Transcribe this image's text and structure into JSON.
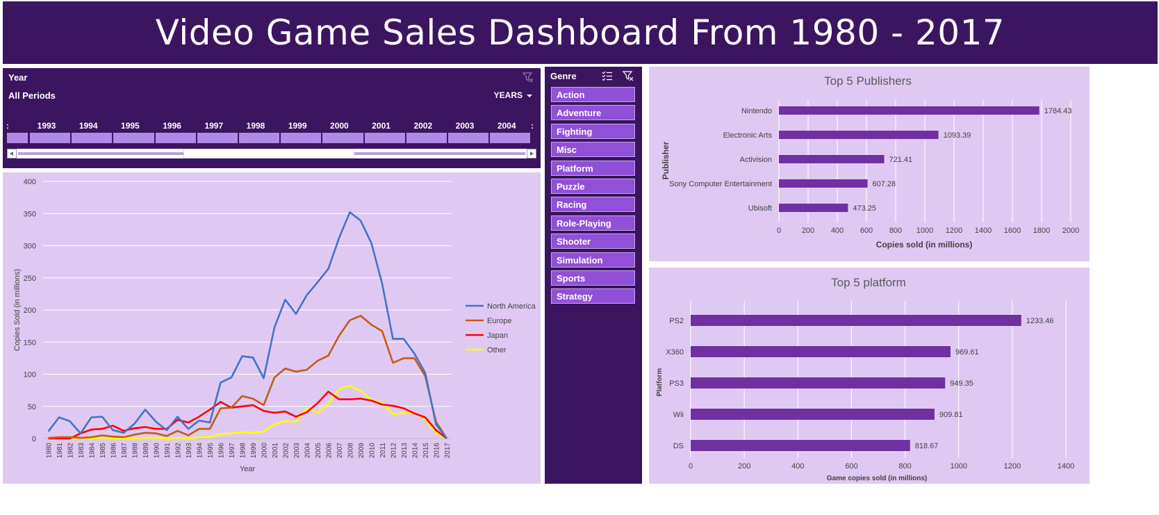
{
  "dashboard": {
    "title": "Video Game Sales Dashboard From 1980 - 2017"
  },
  "timeline": {
    "title": "Year",
    "period_label": "All Periods",
    "level_label": "YEARS",
    "visible_years": [
      "1993",
      "1994",
      "1995",
      "1996",
      "1997",
      "1998",
      "1999",
      "2000",
      "2001",
      "2002",
      "2003",
      "2004"
    ]
  },
  "genre_slicer": {
    "title": "Genre",
    "items": [
      "Action",
      "Adventure",
      "Fighting",
      "Misc",
      "Platform",
      "Puzzle",
      "Racing",
      "Role-Playing",
      "Shooter",
      "Simulation",
      "Sports",
      "Strategy"
    ]
  },
  "colors": {
    "dark_purple": "#3b1560",
    "panel_bg": "#dfc9f3",
    "bar": "#7030a0",
    "genre_button": "#9150d8",
    "north_america": "#4472c4",
    "europe": "#c55a11",
    "japan": "#ff0000",
    "other": "#ffff00"
  },
  "chart_data": [
    {
      "type": "line",
      "title": "",
      "xlabel": "Year",
      "ylabel": "Copies Sold (in millions)",
      "ylim": [
        0,
        400
      ],
      "yticks": [
        0,
        50,
        100,
        150,
        200,
        250,
        300,
        350,
        400
      ],
      "grid": true,
      "legend_position": "right",
      "x": [
        "1980",
        "1981",
        "1982",
        "1983",
        "1984",
        "1985",
        "1986",
        "1987",
        "1988",
        "1989",
        "1990",
        "1991",
        "1992",
        "1993",
        "1994",
        "1995",
        "1996",
        "1997",
        "1998",
        "1999",
        "2000",
        "2001",
        "2002",
        "2003",
        "2004",
        "2005",
        "2006",
        "2007",
        "2008",
        "2009",
        "2010",
        "2011",
        "2012",
        "2013",
        "2014",
        "2015",
        "2016",
        "2017"
      ],
      "series": [
        {
          "name": "North America",
          "color": "#4472c4",
          "values": [
            11,
            33,
            27,
            8,
            33,
            34,
            13,
            9,
            23,
            45,
            26,
            13,
            34,
            15,
            28,
            25,
            87,
            95,
            128,
            126,
            94,
            173,
            216,
            194,
            223,
            243,
            264,
            312,
            352,
            339,
            304,
            241,
            155,
            155,
            132,
            102,
            22,
            0
          ]
        },
        {
          "name": "Europe",
          "color": "#c55a11",
          "values": [
            1,
            2,
            2,
            1,
            2,
            5,
            3,
            2,
            6,
            9,
            8,
            4,
            12,
            5,
            15,
            15,
            47,
            48,
            66,
            62,
            52,
            95,
            109,
            104,
            107,
            121,
            129,
            160,
            184,
            191,
            177,
            167,
            118,
            125,
            125,
            97,
            26,
            0
          ]
        },
        {
          "name": "Japan",
          "color": "#ff0000",
          "values": [
            0,
            0,
            0,
            8,
            14,
            15,
            20,
            12,
            16,
            18,
            15,
            15,
            29,
            25,
            34,
            45,
            57,
            48,
            50,
            52,
            43,
            40,
            42,
            34,
            41,
            55,
            73,
            61,
            61,
            62,
            59,
            53,
            51,
            47,
            39,
            33,
            13,
            0
          ]
        },
        {
          "name": "Other",
          "color": "#ffff00",
          "values": [
            0,
            0,
            0,
            0,
            0,
            1,
            0,
            0,
            0,
            1,
            1,
            0,
            1,
            0,
            2,
            2,
            7,
            8,
            10,
            9,
            11,
            22,
            27,
            26,
            47,
            40,
            54,
            77,
            82,
            74,
            60,
            55,
            38,
            40,
            40,
            30,
            9,
            0
          ]
        }
      ]
    },
    {
      "type": "bar",
      "orientation": "horizontal",
      "title": "Top 5 Publishers",
      "xlabel": "Copies sold (in millions)",
      "ylabel": "Publisher",
      "xlim": [
        0,
        2000
      ],
      "xticks": [
        0,
        200,
        400,
        600,
        800,
        1000,
        1200,
        1400,
        1600,
        1800,
        2000
      ],
      "grid": true,
      "categories": [
        "Nintendo",
        "Electronic Arts",
        "Activision",
        "Sony Computer Entertainment",
        "Ubisoft"
      ],
      "values": [
        1784.43,
        1093.39,
        721.41,
        607.28,
        473.25
      ],
      "value_labels": [
        "1784.43",
        "1093.39",
        "721.41",
        "607.28",
        "473.25"
      ]
    },
    {
      "type": "bar",
      "orientation": "horizontal",
      "title": "Top 5 platform",
      "xlabel": "Game copies sold  (in millions)",
      "ylabel": "Platform",
      "xlim": [
        0,
        1400
      ],
      "xticks": [
        0,
        200,
        400,
        600,
        800,
        1000,
        1200,
        1400
      ],
      "grid": true,
      "categories": [
        "PS2",
        "X360",
        "PS3",
        "Wii",
        "DS"
      ],
      "values": [
        1233.46,
        969.61,
        949.35,
        909.81,
        818.67
      ],
      "value_labels": [
        "1233.46",
        "969.61",
        "949.35",
        "909.81",
        "818.67"
      ]
    }
  ]
}
